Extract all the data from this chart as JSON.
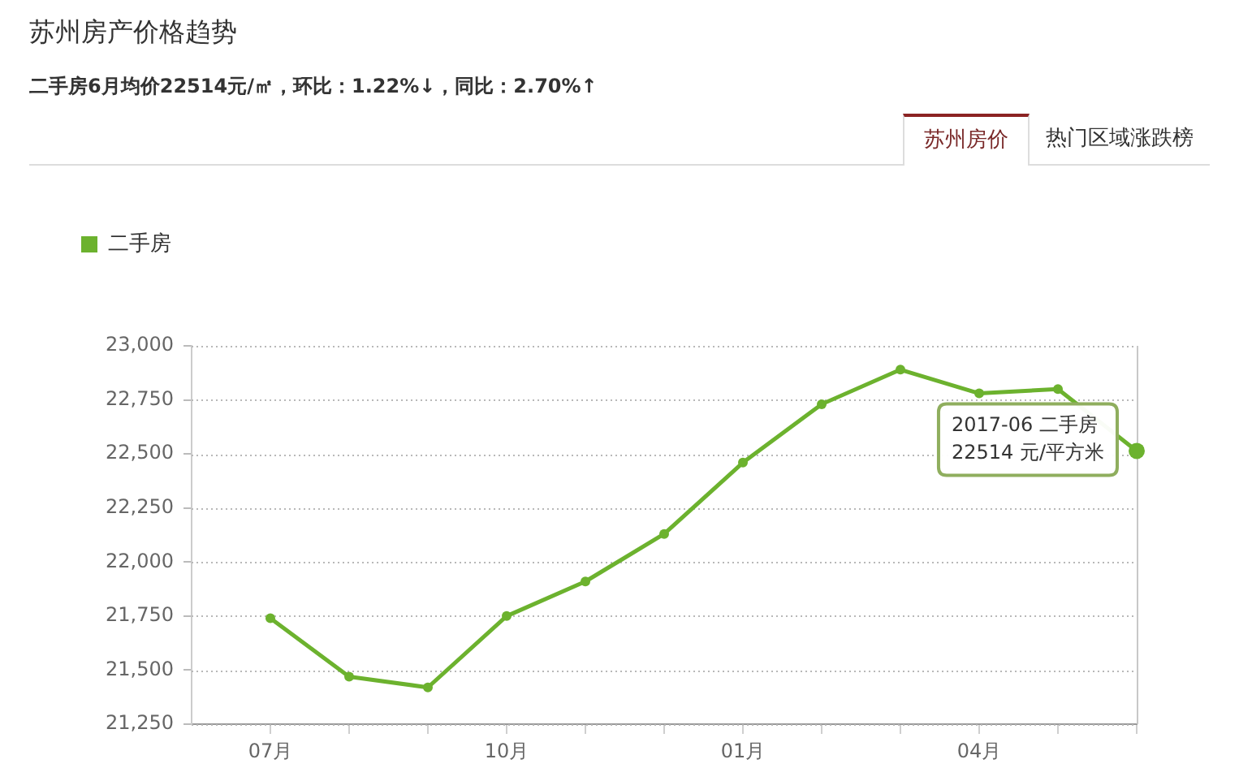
{
  "chart_data": {
    "type": "line",
    "title": "苏州房产价格趋势",
    "subtitle": "二手房6月均价22514元/㎡，环比：1.22%↓，同比：2.70%↑",
    "x": [
      "2016-07",
      "2016-08",
      "2016-09",
      "2016-10",
      "2016-11",
      "2016-12",
      "2017-01",
      "2017-02",
      "2017-03",
      "2017-04",
      "2017-05",
      "2017-06"
    ],
    "xlim": [
      "2016-06",
      "2017-06"
    ],
    "xticks": [
      {
        "value": "2016-07",
        "label": "07月"
      },
      {
        "value": "2016-08",
        "label": null
      },
      {
        "value": "2016-09",
        "label": null
      },
      {
        "value": "2016-10",
        "label": "10月"
      },
      {
        "value": "2016-11",
        "label": null
      },
      {
        "value": "2016-12",
        "label": null
      },
      {
        "value": "2017-01",
        "label": "01月"
      },
      {
        "value": "2017-02",
        "label": null
      },
      {
        "value": "2017-03",
        "label": null
      },
      {
        "value": "2017-04",
        "label": "04月"
      },
      {
        "value": "2017-05",
        "label": null
      },
      {
        "value": "2017-06",
        "label": null
      }
    ],
    "series": [
      {
        "name": "二手房",
        "color": "#6cb22e",
        "values": [
          21740,
          21470,
          21420,
          21750,
          21910,
          22130,
          22460,
          22730,
          22890,
          22780,
          22800,
          22514
        ]
      }
    ],
    "ylim": [
      21250,
      23000
    ],
    "yticks": [
      {
        "value": 21250,
        "label": "21,250"
      },
      {
        "value": 21500,
        "label": "21,500"
      },
      {
        "value": 21750,
        "label": "21,750"
      },
      {
        "value": 22000,
        "label": "22,000"
      },
      {
        "value": 22250,
        "label": "22,250"
      },
      {
        "value": 22500,
        "label": "22,500"
      },
      {
        "value": 22750,
        "label": "22,750"
      },
      {
        "value": 23000,
        "label": "23,000"
      }
    ],
    "grid": "y",
    "legend": "top left",
    "marker": "circle",
    "annotations": [
      "苏州房价",
      "热门区域涨跌榜",
      {
        "text": "2017-06 二手房\n22514 元/平方米",
        "x": "2017-06",
        "y": 22514
      }
    ]
  }
}
